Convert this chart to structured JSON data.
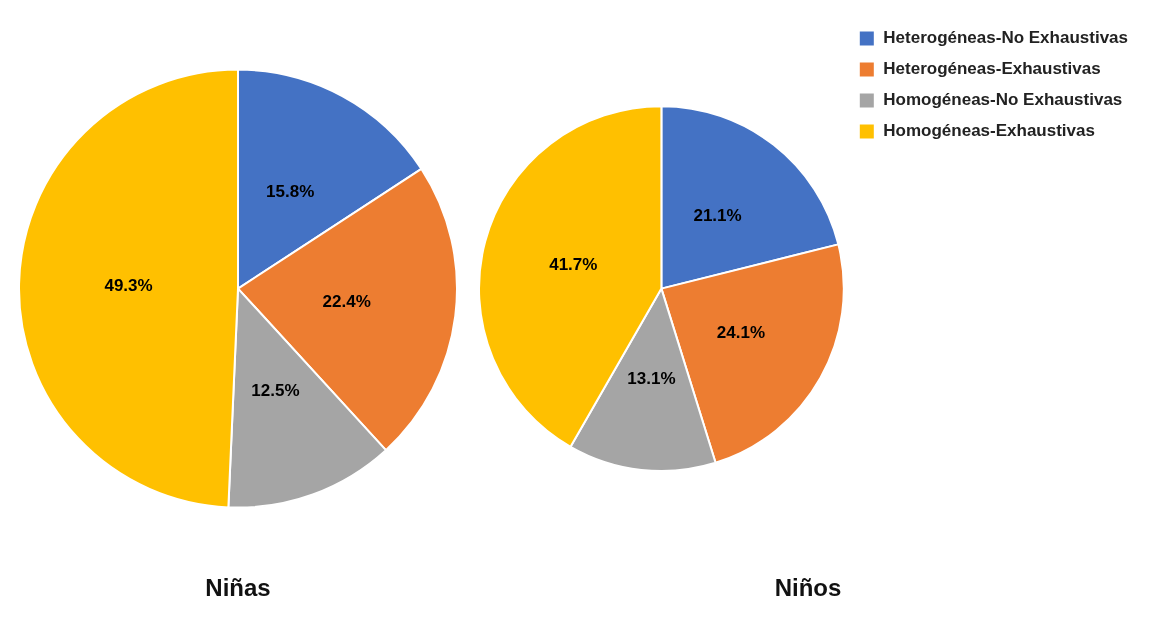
{
  "chart_data": [
    {
      "type": "pie",
      "title": "Niñas",
      "categories": [
        null,
        null,
        null,
        null
      ],
      "values": [
        15.8,
        22.4,
        12.5,
        49.3
      ],
      "colors": [
        "#4472c4",
        "#ed7d31",
        "#a5a5a5",
        "#ffc000"
      ],
      "value_labels": [
        "15.8%",
        "22.4%",
        "12.5%",
        "49.3%"
      ]
    },
    {
      "type": "pie",
      "title": "Niños",
      "categories": [
        "Heterogéneas-No Exhaustivas",
        "Heterogéneas-Exhaustivas",
        "Homogéneas-No Exhaustivas",
        "Homogéneas-Exhaustivas"
      ],
      "values": [
        21.1,
        24.1,
        13.1,
        41.7
      ],
      "colors": [
        "#4472c4",
        "#ed7d31",
        "#a5a5a5",
        "#ffc000"
      ],
      "value_labels": [
        "21.1%",
        "24.1%",
        "13.1%",
        "41.7%"
      ],
      "legend": "top right"
    }
  ]
}
